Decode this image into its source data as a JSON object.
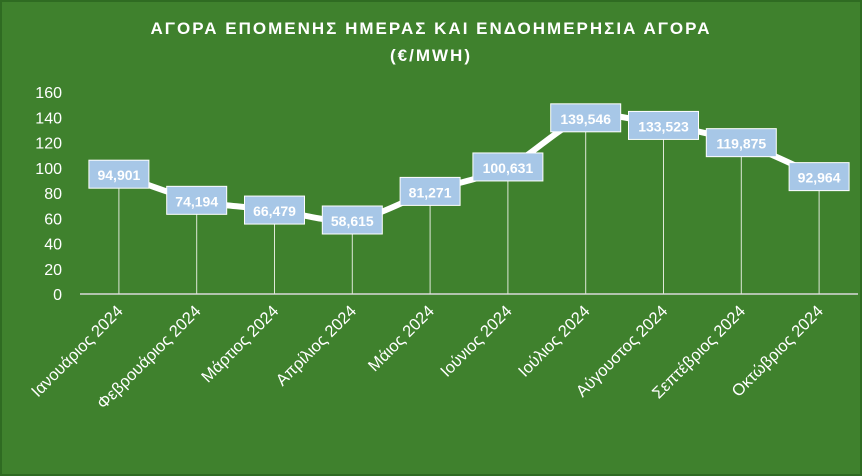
{
  "chart_data": {
    "type": "line",
    "title": "ΑΓΟΡΑ ΕΠΟΜΕΝΗΣ ΗΜΕΡΑΣ ΚΑΙ ΕΝΔΟΗΜΕΡΗΣΙΑ ΑΓΟΡΑ",
    "subtitle": "(€/MWH)",
    "categories": [
      "Ιανουάριος 2024",
      "Φεβρουάριος 2024",
      "Μάρτιος 2024",
      "Απρίλιος 2024",
      "Μάιος 2024",
      "Ιούνιος 2024",
      "Ιούλιος 2024",
      "Αύγουστος 2024",
      "Σεπτέβριος 2024",
      "Οκτώβριος 2024"
    ],
    "series": [
      {
        "values": [
          94.901,
          74.194,
          66.479,
          58.615,
          81.271,
          100.631,
          139.546,
          133.523,
          119.875,
          92.964
        ],
        "labels": [
          "94,901",
          "74,194",
          "66,479",
          "58,615",
          "81,271",
          "100,631",
          "139,546",
          "133,523",
          "119,875",
          "92,964"
        ]
      }
    ],
    "ylim": [
      0,
      160
    ],
    "yticks": [
      "0",
      "20",
      "40",
      "60",
      "80",
      "100",
      "120",
      "140",
      "160"
    ],
    "grid": false,
    "legend": "none",
    "colors": {
      "background": "#3f812d",
      "line": "#ffffff",
      "label_box": "#a7c7e7",
      "text": "#ffffff"
    }
  }
}
